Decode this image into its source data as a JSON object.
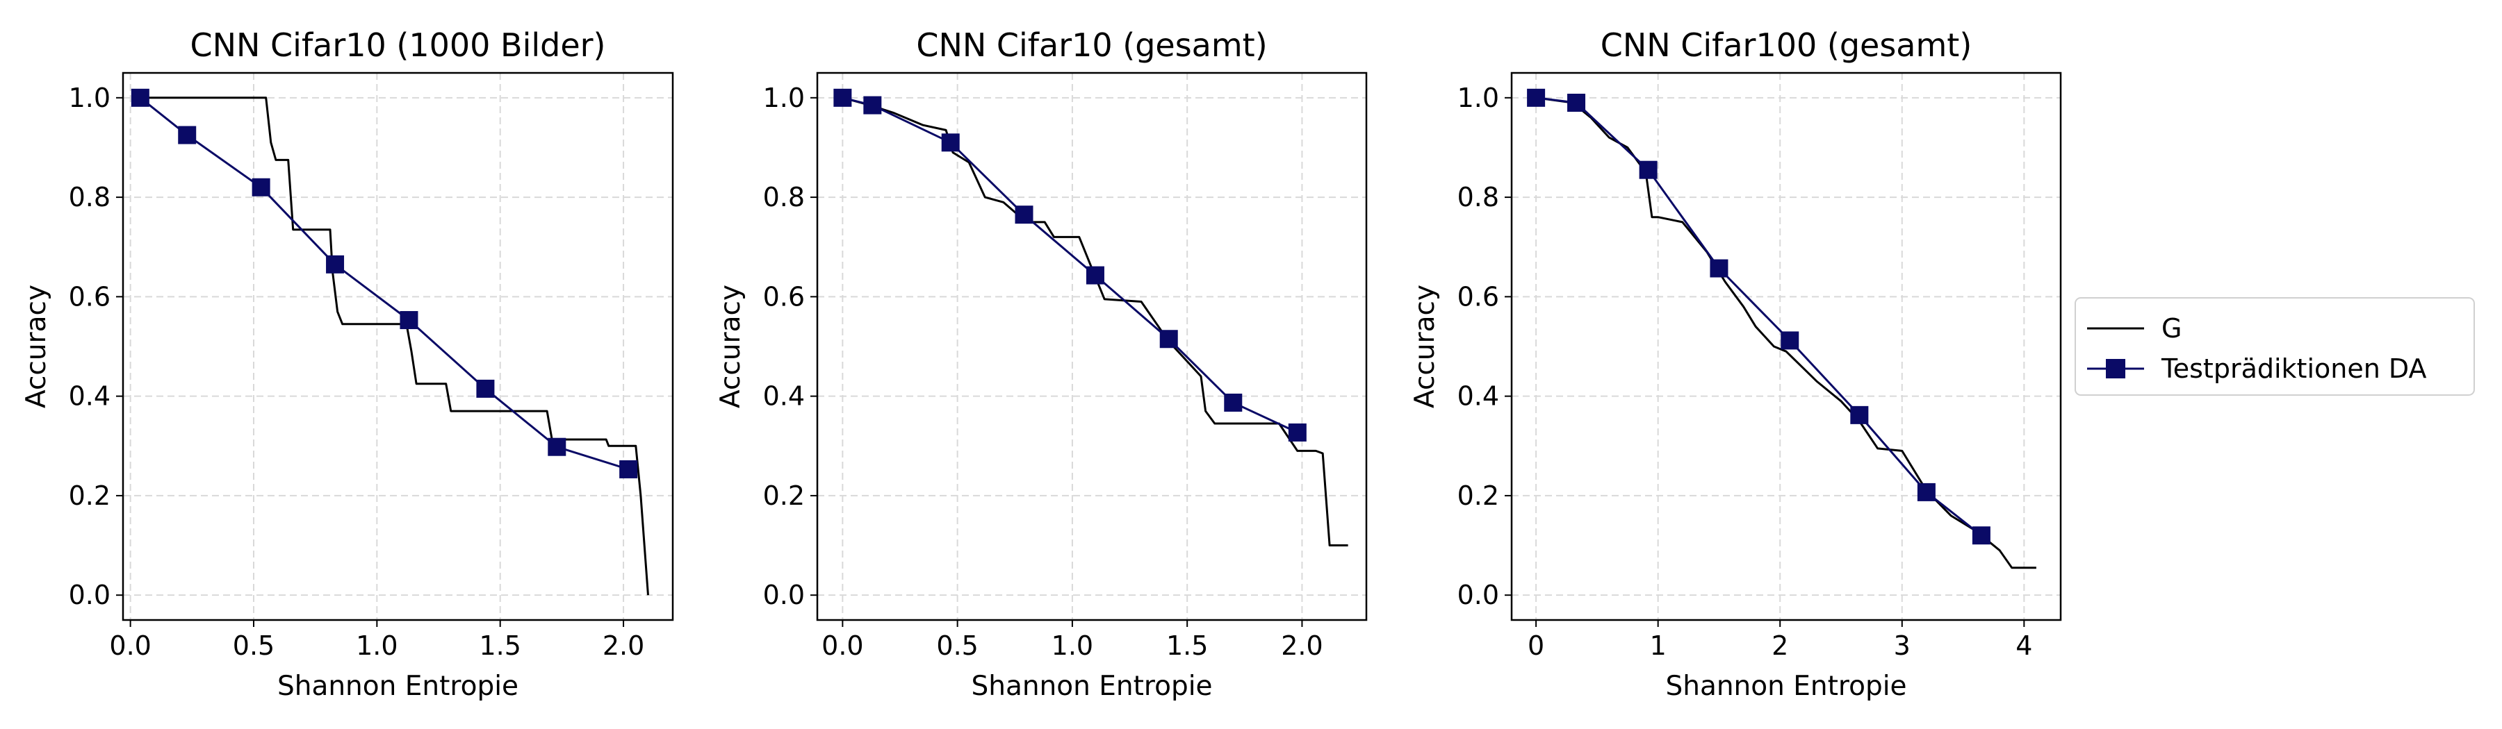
{
  "chart_data": [
    {
      "type": "line",
      "title": "CNN Cifar10 (1000 Bilder)",
      "xlabel": "Shannon Entropie",
      "ylabel": "Accuracy",
      "xlim": [
        -0.03,
        2.2
      ],
      "ylim": [
        -0.05,
        1.05
      ],
      "xticks": [
        0.0,
        0.5,
        1.0,
        1.5,
        2.0
      ],
      "xtick_labels": [
        "0.0",
        "0.5",
        "1.0",
        "1.5",
        "2.0"
      ],
      "yticks": [
        0.0,
        0.2,
        0.4,
        0.6,
        0.8,
        1.0
      ],
      "ytick_labels": [
        "0.0",
        "0.2",
        "0.4",
        "0.6",
        "0.8",
        "1.0"
      ],
      "grid": true,
      "series": [
        {
          "name": "G",
          "color": "#000000",
          "x": [
            0.04,
            0.55,
            0.57,
            0.59,
            0.64,
            0.66,
            0.81,
            0.82,
            0.84,
            0.86,
            1.12,
            1.14,
            1.16,
            1.22,
            1.28,
            1.3,
            1.69,
            1.71,
            1.93,
            1.94,
            2.05,
            2.07,
            2.1
          ],
          "y": [
            1.0,
            1.0,
            0.91,
            0.875,
            0.875,
            0.735,
            0.735,
            0.65,
            0.57,
            0.545,
            0.545,
            0.49,
            0.425,
            0.425,
            0.425,
            0.37,
            0.37,
            0.313,
            0.313,
            0.3,
            0.3,
            0.2,
            0.0
          ]
        },
        {
          "name": "Testprädiktionen DA",
          "color": "#0a0a66",
          "marker": "square",
          "x": [
            0.04,
            0.23,
            0.53,
            0.83,
            1.13,
            1.44,
            1.73,
            2.02
          ],
          "y": [
            1.0,
            0.925,
            0.82,
            0.665,
            0.553,
            0.415,
            0.298,
            0.253
          ]
        }
      ]
    },
    {
      "type": "line",
      "title": "CNN Cifar10 (gesamt)",
      "xlabel": "Shannon Entropie",
      "ylabel": "Accuracy",
      "xlim": [
        -0.11,
        2.28
      ],
      "ylim": [
        -0.05,
        1.05
      ],
      "xticks": [
        0.0,
        0.5,
        1.0,
        1.5,
        2.0
      ],
      "xtick_labels": [
        "0.0",
        "0.5",
        "1.0",
        "1.5",
        "2.0"
      ],
      "yticks": [
        0.0,
        0.2,
        0.4,
        0.6,
        0.8,
        1.0
      ],
      "ytick_labels": [
        "0.0",
        "0.2",
        "0.4",
        "0.6",
        "0.8",
        "1.0"
      ],
      "grid": true,
      "series": [
        {
          "name": "G",
          "color": "#000000",
          "x": [
            0.0,
            0.12,
            0.22,
            0.35,
            0.45,
            0.48,
            0.55,
            0.62,
            0.7,
            0.8,
            0.88,
            0.92,
            1.03,
            1.1,
            1.14,
            1.3,
            1.42,
            1.5,
            1.56,
            1.58,
            1.62,
            1.9,
            1.98,
            2.06,
            2.09,
            2.12,
            2.2
          ],
          "y": [
            1.0,
            0.985,
            0.97,
            0.945,
            0.935,
            0.89,
            0.87,
            0.8,
            0.79,
            0.75,
            0.75,
            0.72,
            0.72,
            0.64,
            0.595,
            0.59,
            0.51,
            0.47,
            0.44,
            0.37,
            0.345,
            0.345,
            0.29,
            0.29,
            0.285,
            0.1,
            0.1
          ]
        },
        {
          "name": "Testprädiktionen DA",
          "color": "#0a0a66",
          "marker": "square",
          "x": [
            0.0,
            0.13,
            0.47,
            0.79,
            1.1,
            1.42,
            1.7,
            1.98
          ],
          "y": [
            1.0,
            0.985,
            0.91,
            0.765,
            0.643,
            0.515,
            0.387,
            0.327
          ]
        }
      ]
    },
    {
      "type": "line",
      "title": "CNN Cifar100 (gesamt)",
      "xlabel": "Shannon Entropie",
      "ylabel": "Accuracy",
      "xlim": [
        -0.2,
        4.3
      ],
      "ylim": [
        -0.05,
        1.05
      ],
      "xticks": [
        0,
        1,
        2,
        3,
        4
      ],
      "xtick_labels": [
        "0",
        "1",
        "2",
        "3",
        "4"
      ],
      "yticks": [
        0.0,
        0.2,
        0.4,
        0.6,
        0.8,
        1.0
      ],
      "ytick_labels": [
        "0.0",
        "0.2",
        "0.4",
        "0.6",
        "0.8",
        "1.0"
      ],
      "grid": true,
      "series": [
        {
          "name": "G",
          "color": "#000000",
          "x": [
            0.0,
            0.3,
            0.45,
            0.6,
            0.75,
            0.9,
            0.95,
            1.0,
            1.2,
            1.4,
            1.55,
            1.7,
            1.8,
            1.95,
            2.05,
            2.3,
            2.5,
            2.65,
            2.8,
            3.0,
            3.2,
            3.4,
            3.6,
            3.8,
            3.9,
            4.1
          ],
          "y": [
            1.0,
            0.99,
            0.96,
            0.92,
            0.9,
            0.85,
            0.76,
            0.76,
            0.75,
            0.69,
            0.63,
            0.58,
            0.54,
            0.5,
            0.49,
            0.43,
            0.39,
            0.35,
            0.295,
            0.29,
            0.21,
            0.16,
            0.13,
            0.09,
            0.055,
            0.055
          ]
        },
        {
          "name": "Testprädiktionen DA",
          "color": "#0a0a66",
          "marker": "square",
          "x": [
            0.0,
            0.33,
            0.92,
            1.5,
            2.08,
            2.65,
            3.2,
            3.65
          ],
          "y": [
            1.0,
            0.99,
            0.855,
            0.657,
            0.512,
            0.362,
            0.207,
            0.12
          ]
        }
      ]
    }
  ],
  "legend": {
    "placement": "center-right",
    "entries": [
      {
        "label": "G",
        "color": "#000000",
        "marker": "none"
      },
      {
        "label": "Testprädiktionen DA",
        "color": "#0a0a66",
        "marker": "square"
      }
    ]
  }
}
